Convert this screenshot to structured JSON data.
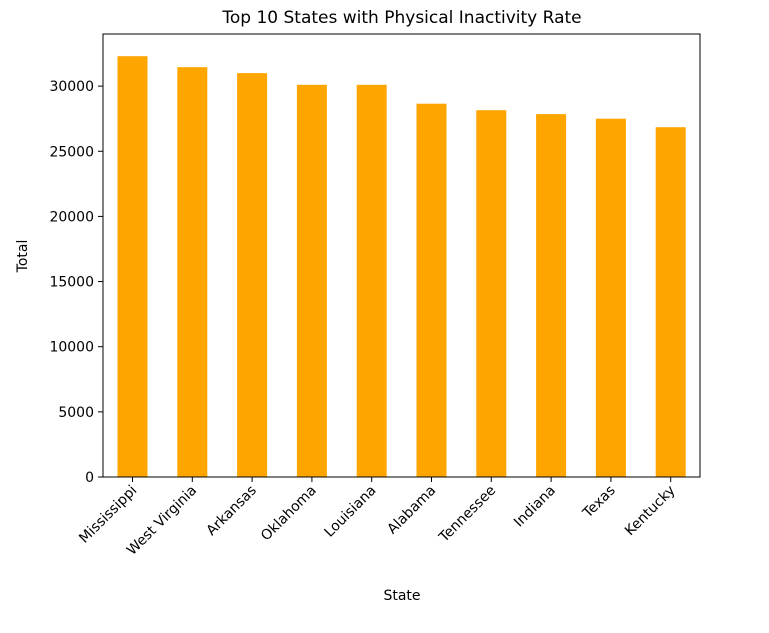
{
  "chart_data": {
    "type": "bar",
    "title": "Top 10 States with Physical Inactivity Rate",
    "xlabel": "State",
    "ylabel": "Total",
    "categories": [
      "Mississippi",
      "West Virginia",
      "Arkansas",
      "Oklahoma",
      "Louisiana",
      "Alabama",
      "Tennessee",
      "Indiana",
      "Texas",
      "Kentucky"
    ],
    "values": [
      32300,
      31450,
      31000,
      30100,
      30100,
      28650,
      28150,
      27850,
      27500,
      26850
    ],
    "ylim": [
      0,
      34000
    ],
    "yticks": [
      0,
      5000,
      10000,
      15000,
      20000,
      25000,
      30000
    ],
    "bar_color": "#FFA500",
    "grid": false,
    "legend": "none"
  }
}
